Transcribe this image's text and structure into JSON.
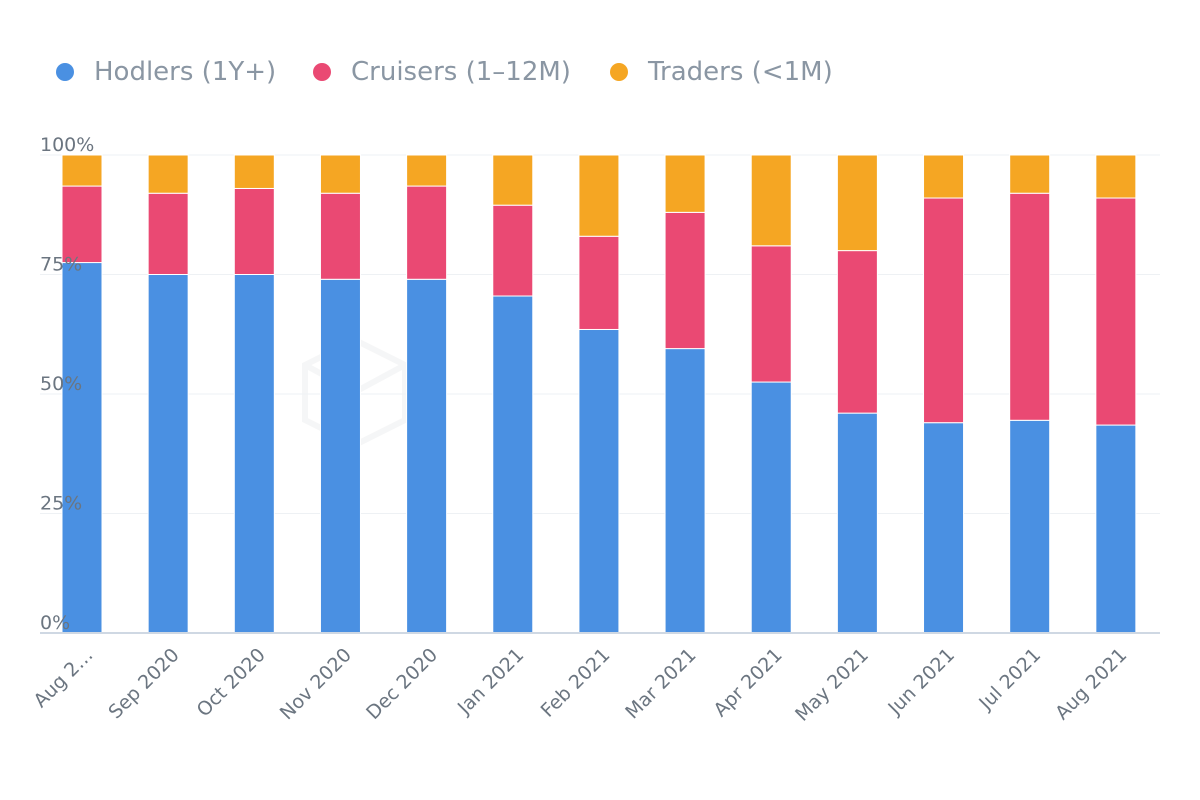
{
  "chart_data": {
    "type": "bar",
    "stacked": true,
    "stack_mode": "percent",
    "categories": [
      "Aug 2…",
      "Sep 2020",
      "Oct 2020",
      "Nov 2020",
      "Dec 2020",
      "Jan 2021",
      "Feb 2021",
      "Mar 2021",
      "Apr 2021",
      "May 2021",
      "Jun 2021",
      "Jul 2021",
      "Aug 2021"
    ],
    "series": [
      {
        "name": "Hodlers (1Y+)",
        "color": "#4a90e2",
        "values": [
          77.5,
          75,
          75,
          74,
          74,
          70.5,
          63.5,
          59.5,
          52.5,
          46,
          44,
          44.5,
          43.5
        ]
      },
      {
        "name": "Cruisers (1–12M)",
        "color": "#ea4973",
        "values": [
          16,
          17,
          18,
          18,
          19.5,
          19,
          19.5,
          28.5,
          28.5,
          34,
          47,
          47.5,
          47.5
        ]
      },
      {
        "name": "Traders (<1M)",
        "color": "#f5a623",
        "values": [
          6.5,
          8,
          7,
          8,
          6.5,
          10.5,
          17,
          12,
          19,
          20,
          9,
          8,
          9
        ]
      }
    ],
    "ylim": [
      0,
      100
    ],
    "yticks": [
      "0%",
      "25%",
      "50%",
      "75%",
      "100%"
    ],
    "legend_position": "top-left",
    "grid": true
  }
}
